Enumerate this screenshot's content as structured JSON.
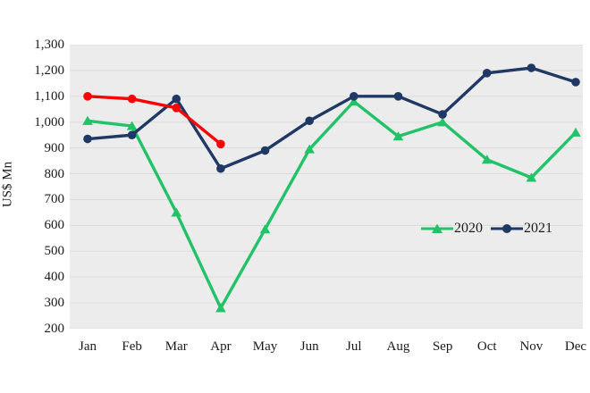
{
  "chart_data": {
    "type": "line",
    "title": "",
    "xlabel": "",
    "ylabel": "US$ Mn",
    "ylim": [
      200,
      1300
    ],
    "ytick_step": 100,
    "ytick_labels": [
      "1,300",
      "1,200",
      "1,100",
      "1,000",
      "900",
      "800",
      "700",
      "600",
      "500",
      "400",
      "300",
      "200"
    ],
    "categories": [
      "Jan",
      "Feb",
      "Mar",
      "Apr",
      "May",
      "Jun",
      "Jul",
      "Aug",
      "Sep",
      "Oct",
      "Nov",
      "Dec"
    ],
    "series": [
      {
        "name": "2020",
        "color": "#22C368",
        "marker": "triangle",
        "in_legend": true,
        "values": [
          1005,
          985,
          650,
          280,
          585,
          895,
          1080,
          945,
          1000,
          855,
          785,
          960
        ]
      },
      {
        "name": "2021",
        "color": "#1F3864",
        "marker": "circle",
        "in_legend": true,
        "values": [
          935,
          950,
          1090,
          820,
          890,
          1005,
          1100,
          1100,
          1030,
          1190,
          1210,
          1155
        ]
      },
      {
        "name": "unlabeled-red-series",
        "color": "#F70505",
        "marker": "circle",
        "in_legend": false,
        "values": [
          1100,
          1090,
          1055,
          915,
          null,
          null,
          null,
          null,
          null,
          null,
          null,
          null
        ]
      }
    ],
    "legend": {
      "position": "inside-right",
      "entries": [
        "2020",
        "2021"
      ]
    },
    "grid": true,
    "plot_bg": "#ECECEC",
    "gridline_color": "#DBDBDB"
  }
}
